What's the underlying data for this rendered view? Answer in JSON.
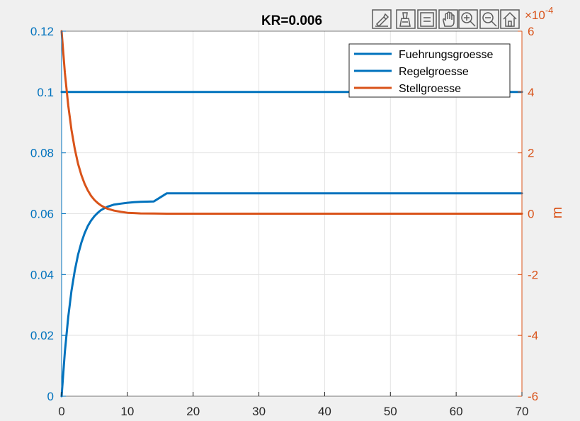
{
  "chart_data": {
    "type": "line",
    "title": "KR=0.006",
    "x_axis": {
      "range": [
        0,
        70
      ],
      "ticks": [
        0,
        10,
        20,
        30,
        40,
        50,
        60,
        70
      ],
      "tick_labels": [
        "0",
        "10",
        "20",
        "30",
        "40",
        "50",
        "60",
        "70"
      ],
      "label": ""
    },
    "y_left": {
      "range": [
        0,
        0.12
      ],
      "ticks": [
        0,
        0.02,
        0.04,
        0.06,
        0.08,
        0.1,
        0.12
      ],
      "tick_labels": [
        "0",
        "0.02",
        "0.04",
        "0.06",
        "0.08",
        "0.1",
        "0.12"
      ],
      "label": "",
      "color": "#0072BD"
    },
    "y_right": {
      "range": [
        -6,
        6
      ],
      "ticks": [
        -6,
        -4,
        -2,
        0,
        2,
        4,
        6
      ],
      "tick_labels": [
        "-6",
        "-4",
        "-2",
        "0",
        "2",
        "4",
        "6"
      ],
      "exponent_label": "×10",
      "exponent_value": "-4",
      "label": "m",
      "color": "#D95319"
    },
    "grid": true,
    "legend_position": "top-right",
    "series": [
      {
        "name": "Fuehrungsgroesse",
        "axis": "left",
        "color": "#0072BD",
        "x": [
          0,
          70
        ],
        "y": [
          0.1,
          0.1
        ]
      },
      {
        "name": "Regelgroesse",
        "axis": "left",
        "color": "#0072BD",
        "x": [
          0,
          0.5,
          1,
          1.5,
          2,
          2.5,
          3,
          3.5,
          4,
          4.5,
          5,
          5.5,
          6,
          6.5,
          7,
          8,
          9,
          10,
          11,
          12,
          14,
          16,
          18,
          20,
          25,
          30,
          40,
          50,
          60,
          70
        ],
        "y": [
          0,
          0.0146,
          0.0259,
          0.0346,
          0.0413,
          0.0465,
          0.0505,
          0.0536,
          0.056,
          0.0578,
          0.0592,
          0.0603,
          0.0612,
          0.0618,
          0.0623,
          0.063,
          0.0633,
          0.0636,
          0.0638,
          0.0639,
          0.064,
          0.0667,
          0.0667,
          0.0667,
          0.0667,
          0.0667,
          0.0667,
          0.0667,
          0.0667,
          0.0667
        ]
      },
      {
        "name": "Stellgroesse",
        "axis": "right",
        "color": "#D95319",
        "x": [
          0,
          0.5,
          1,
          1.5,
          2,
          2.5,
          3,
          3.5,
          4,
          4.5,
          5,
          5.5,
          6,
          6.5,
          7,
          8,
          9,
          10,
          11,
          12,
          14,
          16,
          18,
          20,
          25,
          30,
          40,
          50,
          60,
          70
        ],
        "y": [
          6,
          4.63,
          3.57,
          2.76,
          2.13,
          1.64,
          1.27,
          0.98,
          0.76,
          0.58,
          0.45,
          0.35,
          0.27,
          0.21,
          0.16,
          0.1,
          0.06,
          0.03,
          0.02,
          0.01,
          0.005,
          0,
          0,
          0,
          0,
          0,
          0,
          0,
          0,
          0
        ]
      }
    ]
  },
  "toolbar": {
    "icons": [
      "brush-icon",
      "data-tips-icon",
      "pan-icon",
      "zoom-in-icon",
      "zoom-out-icon",
      "home-icon"
    ]
  }
}
